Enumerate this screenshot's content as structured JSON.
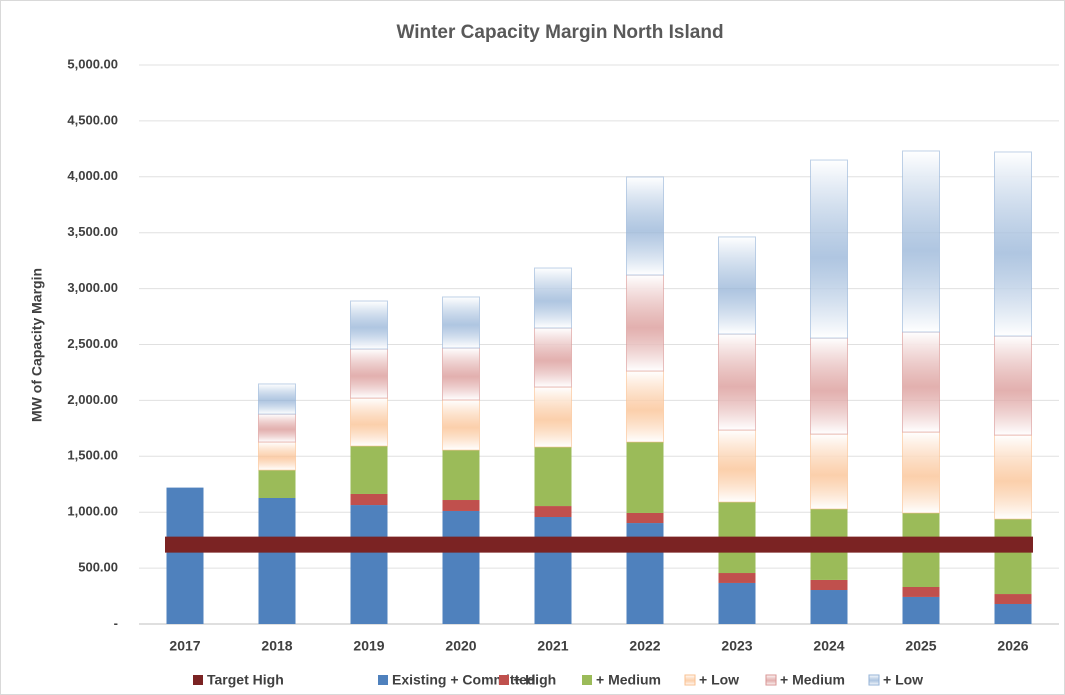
{
  "chart_data": {
    "type": "bar",
    "stacked": true,
    "title": "Winter Capacity Margin North Island",
    "y_axis_label": "MW of Capacity Margin",
    "categories": [
      "2017",
      "2018",
      "2019",
      "2020",
      "2021",
      "2022",
      "2023",
      "2024",
      "2025",
      "2026"
    ],
    "series": [
      {
        "name": "Target High",
        "type": "line",
        "color": "#7b2323",
        "values": [
          710,
          710,
          710,
          710,
          710,
          710,
          710,
          710,
          710,
          710
        ]
      },
      {
        "name": "Existing + Committed",
        "color": "#4f81bd",
        "values": [
          1220,
          1127,
          1064,
          1011,
          957,
          903,
          367,
          304,
          242,
          179
        ]
      },
      {
        "name": "+ High",
        "color": "#c0504d",
        "values": [
          0,
          0,
          99,
          98,
          98,
          90,
          89,
          90,
          89,
          89
        ]
      },
      {
        "name": "+ Medium",
        "color": "#9bbb59",
        "values": [
          0,
          250,
          429,
          447,
          528,
          635,
          635,
          635,
          662,
          671
        ]
      },
      {
        "name": "+ Low",
        "color": "#fac090",
        "fill": "gradient",
        "values": [
          0,
          251,
          429,
          448,
          537,
          635,
          644,
          670,
          724,
          751
        ]
      },
      {
        "name": "+ Medium",
        "color": "#d99694",
        "fill": "gradient",
        "values": [
          0,
          250,
          439,
          465,
          528,
          859,
          859,
          859,
          895,
          886
        ]
      },
      {
        "name": "+ Low",
        "color": "#95b3d7",
        "fill": "gradient",
        "values": [
          0,
          269,
          429,
          456,
          536,
          876,
          868,
          1592,
          1619,
          1646
        ]
      }
    ],
    "ylim": [
      0,
      5000
    ],
    "yticks": [
      {
        "value": 0,
        "label": "-"
      },
      {
        "value": 500,
        "label": "500.00"
      },
      {
        "value": 1000,
        "label": "1,000.00"
      },
      {
        "value": 1500,
        "label": "1,500.00"
      },
      {
        "value": 2000,
        "label": "2,000.00"
      },
      {
        "value": 2500,
        "label": "2,500.00"
      },
      {
        "value": 3000,
        "label": "3,000.00"
      },
      {
        "value": 3500,
        "label": "3,500.00"
      },
      {
        "value": 4000,
        "label": "4,000.00"
      },
      {
        "value": 4500,
        "label": "4,500.00"
      },
      {
        "value": 5000,
        "label": "5,000.00"
      }
    ],
    "grid": true,
    "legend": "bottom"
  }
}
